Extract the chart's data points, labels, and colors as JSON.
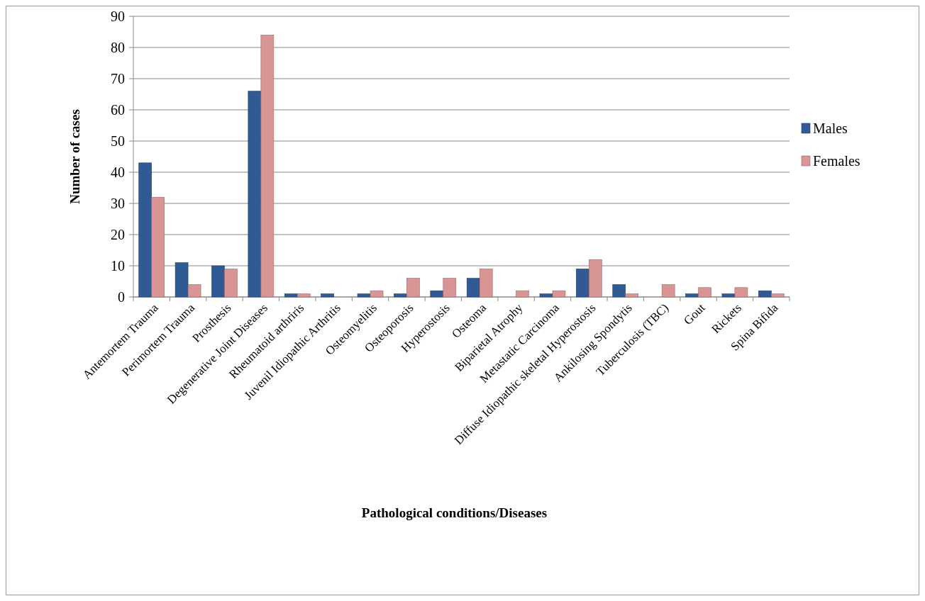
{
  "chart_data": {
    "type": "bar",
    "xlabel": "Pathological conditions/Diseases",
    "ylabel": "Number of cases",
    "categories": [
      "Antemortem Trauma",
      "Perimortem Trauma",
      "Prosthesis",
      "Degenerative Joint Diseases",
      "Rheumatoid arthriris",
      "Juvenil Idiopathic Arthritis",
      "Osteomyelitis",
      "Osteoporosis",
      "Hyperostosis",
      "Osteoma",
      "Biparietal Atrophy",
      "Metastatic Carcinoma",
      "Diffuse Idiopathic skeletal Hyperostosis",
      "Ankilosing Spondytis",
      "Tuberculosis (TBC)",
      "Gout",
      "Rickets",
      "Spina Bifida"
    ],
    "series": [
      {
        "name": "Males",
        "color": "#2f5a94",
        "values": [
          43,
          11,
          10,
          66,
          1,
          1,
          1,
          1,
          2,
          6,
          0,
          1,
          9,
          4,
          0,
          1,
          1,
          2
        ]
      },
      {
        "name": "Females",
        "color": "#d99594",
        "values": [
          32,
          4,
          9,
          84,
          1,
          0,
          2,
          6,
          6,
          9,
          2,
          2,
          12,
          1,
          4,
          3,
          3,
          1
        ]
      }
    ],
    "ylim": [
      0,
      90
    ],
    "yticks": [
      0,
      10,
      20,
      30,
      40,
      50,
      60,
      70,
      80,
      90
    ],
    "grid": "y",
    "legend": "right"
  }
}
